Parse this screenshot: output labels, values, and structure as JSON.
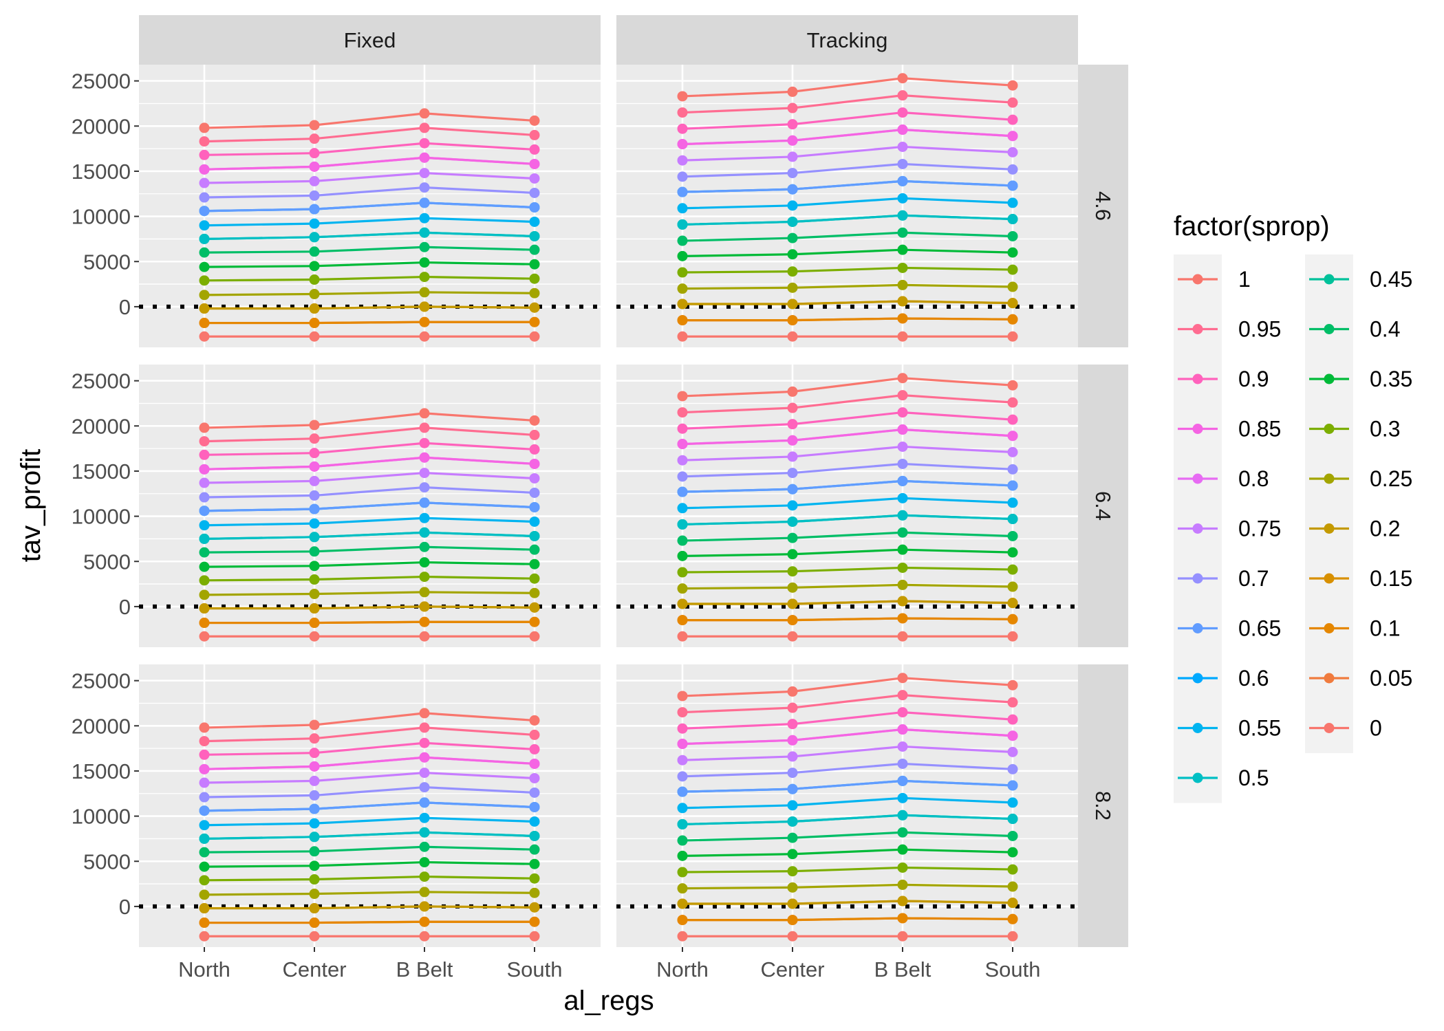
{
  "chart_data": {
    "type": "line",
    "xlabel": "al_regs",
    "ylabel": "tav_profit",
    "categories": [
      "North",
      "Center",
      "B Belt",
      "South"
    ],
    "y_ticks": [
      0,
      5000,
      10000,
      15000,
      20000,
      25000
    ],
    "ylim": [
      -4500,
      26800
    ],
    "reference_line": {
      "y": 0,
      "style": "dotted",
      "color": "#000000"
    },
    "grid": true,
    "legend_title": "factor(sprop)",
    "legend_position": "right",
    "facet_columns": [
      "Fixed",
      "Tracking"
    ],
    "facet_rows": [
      "4.6",
      "6.4",
      "8.2"
    ],
    "series_colors": {
      "1": "#F8766D",
      "0.95": "#FF6C91",
      "0.9": "#FF62BC",
      "0.85": "#F564E3",
      "0.8": "#E76BF3",
      "0.75": "#C77CFF",
      "0.7": "#9590FF",
      "0.65": "#619CFF",
      "0.6": "#00A9FF",
      "0.55": "#00B4F0",
      "0.5": "#00BFC4",
      "0.45": "#00C19A",
      "0.4": "#00BE67",
      "0.35": "#00BA38",
      "0.3": "#7CAE00",
      "0.25": "#A3A500",
      "0.2": "#C49A00",
      "0.15": "#D89000",
      "0.1": "#E58700",
      "0.05": "#F07B3E",
      "0": "#F8766D"
    },
    "legend_colors": {
      "1": "#F8766D",
      "0.95": "#FF6C91",
      "0.9": "#FF62BC",
      "0.85": "#F564E3",
      "0.8": "#E76BF3",
      "0.75": "#C77CFF",
      "0.7": "#9590FF",
      "0.65": "#619CFF",
      "0.6": "#00A9FF",
      "0.55": "#00B4F0",
      "0.5": "#00BFC4",
      "0.45": "#00C19A",
      "0.4": "#00BE67",
      "0.35": "#00BA38",
      "0.3": "#7CAE00",
      "0.25": "#A3A500",
      "0.2": "#C49A00",
      "0.15": "#D89000",
      "0.1": "#E58700",
      "0.05": "#F07B3E",
      "0": "#F8766D"
    },
    "legend_order": [
      "1",
      "0.95",
      "0.9",
      "0.85",
      "0.8",
      "0.75",
      "0.7",
      "0.65",
      "0.6",
      "0.55",
      "0.5",
      "0.45",
      "0.4",
      "0.35",
      "0.3",
      "0.25",
      "0.2",
      "0.15",
      "0.1",
      "0.05",
      "0"
    ],
    "panels": {
      "Fixed": {
        "series": [
          {
            "name": "1",
            "values": [
              19800,
              20100,
              21400,
              20600
            ]
          },
          {
            "name": "0.95",
            "values": [
              18300,
              18600,
              19800,
              19000
            ]
          },
          {
            "name": "0.9",
            "values": [
              16800,
              17000,
              18100,
              17400
            ]
          },
          {
            "name": "0.85",
            "values": [
              15200,
              15500,
              16500,
              15800
            ]
          },
          {
            "name": "0.8",
            "values": [
              15200,
              15500,
              16500,
              15800
            ]
          },
          {
            "name": "0.75",
            "values": [
              13700,
              13900,
              14800,
              14200
            ]
          },
          {
            "name": "0.7",
            "values": [
              12100,
              12300,
              13200,
              12600
            ]
          },
          {
            "name": "0.65",
            "values": [
              10600,
              10800,
              11500,
              11000
            ]
          },
          {
            "name": "0.6",
            "values": [
              10600,
              10800,
              11500,
              11000
            ]
          },
          {
            "name": "0.55",
            "values": [
              9000,
              9200,
              9800,
              9400
            ]
          },
          {
            "name": "0.5",
            "values": [
              7500,
              7700,
              8200,
              7800
            ]
          },
          {
            "name": "0.45",
            "values": [
              7500,
              7700,
              8200,
              7800
            ]
          },
          {
            "name": "0.4",
            "values": [
              6000,
              6100,
              6600,
              6300
            ]
          },
          {
            "name": "0.35",
            "values": [
              4400,
              4500,
              4900,
              4700
            ]
          },
          {
            "name": "0.3",
            "values": [
              2900,
              3000,
              3300,
              3100
            ]
          },
          {
            "name": "0.25",
            "values": [
              1300,
              1400,
              1600,
              1500
            ]
          },
          {
            "name": "0.2",
            "values": [
              -200,
              -200,
              0,
              -100
            ]
          },
          {
            "name": "0.15",
            "values": [
              -200,
              -200,
              0,
              -100
            ]
          },
          {
            "name": "0.1",
            "values": [
              -1800,
              -1800,
              -1700,
              -1700
            ]
          },
          {
            "name": "0.05",
            "values": [
              -1800,
              -1800,
              -1700,
              -1700
            ]
          },
          {
            "name": "0",
            "values": [
              -3300,
              -3300,
              -3300,
              -3300
            ]
          }
        ]
      },
      "Tracking": {
        "series": [
          {
            "name": "1",
            "values": [
              23300,
              23800,
              25300,
              24500
            ]
          },
          {
            "name": "0.95",
            "values": [
              21500,
              22000,
              23400,
              22600
            ]
          },
          {
            "name": "0.9",
            "values": [
              19700,
              20200,
              21500,
              20700
            ]
          },
          {
            "name": "0.85",
            "values": [
              18000,
              18400,
              19600,
              18900
            ]
          },
          {
            "name": "0.8",
            "values": [
              18000,
              18400,
              19600,
              18900
            ]
          },
          {
            "name": "0.75",
            "values": [
              16200,
              16600,
              17700,
              17100
            ]
          },
          {
            "name": "0.7",
            "values": [
              14400,
              14800,
              15800,
              15200
            ]
          },
          {
            "name": "0.65",
            "values": [
              12700,
              13000,
              13900,
              13400
            ]
          },
          {
            "name": "0.6",
            "values": [
              12700,
              13000,
              13900,
              13400
            ]
          },
          {
            "name": "0.55",
            "values": [
              10900,
              11200,
              12000,
              11500
            ]
          },
          {
            "name": "0.5",
            "values": [
              9100,
              9400,
              10100,
              9700
            ]
          },
          {
            "name": "0.45",
            "values": [
              9100,
              9400,
              10100,
              9700
            ]
          },
          {
            "name": "0.4",
            "values": [
              7300,
              7600,
              8200,
              7800
            ]
          },
          {
            "name": "0.35",
            "values": [
              5600,
              5800,
              6300,
              6000
            ]
          },
          {
            "name": "0.3",
            "values": [
              3800,
              3900,
              4300,
              4100
            ]
          },
          {
            "name": "0.25",
            "values": [
              2000,
              2100,
              2400,
              2200
            ]
          },
          {
            "name": "0.2",
            "values": [
              300,
              300,
              600,
              400
            ]
          },
          {
            "name": "0.15",
            "values": [
              300,
              300,
              600,
              400
            ]
          },
          {
            "name": "0.1",
            "values": [
              -1500,
              -1500,
              -1300,
              -1400
            ]
          },
          {
            "name": "0.05",
            "values": [
              -1500,
              -1500,
              -1300,
              -1400
            ]
          },
          {
            "name": "0",
            "values": [
              -3300,
              -3300,
              -3300,
              -3300
            ]
          }
        ]
      }
    }
  }
}
